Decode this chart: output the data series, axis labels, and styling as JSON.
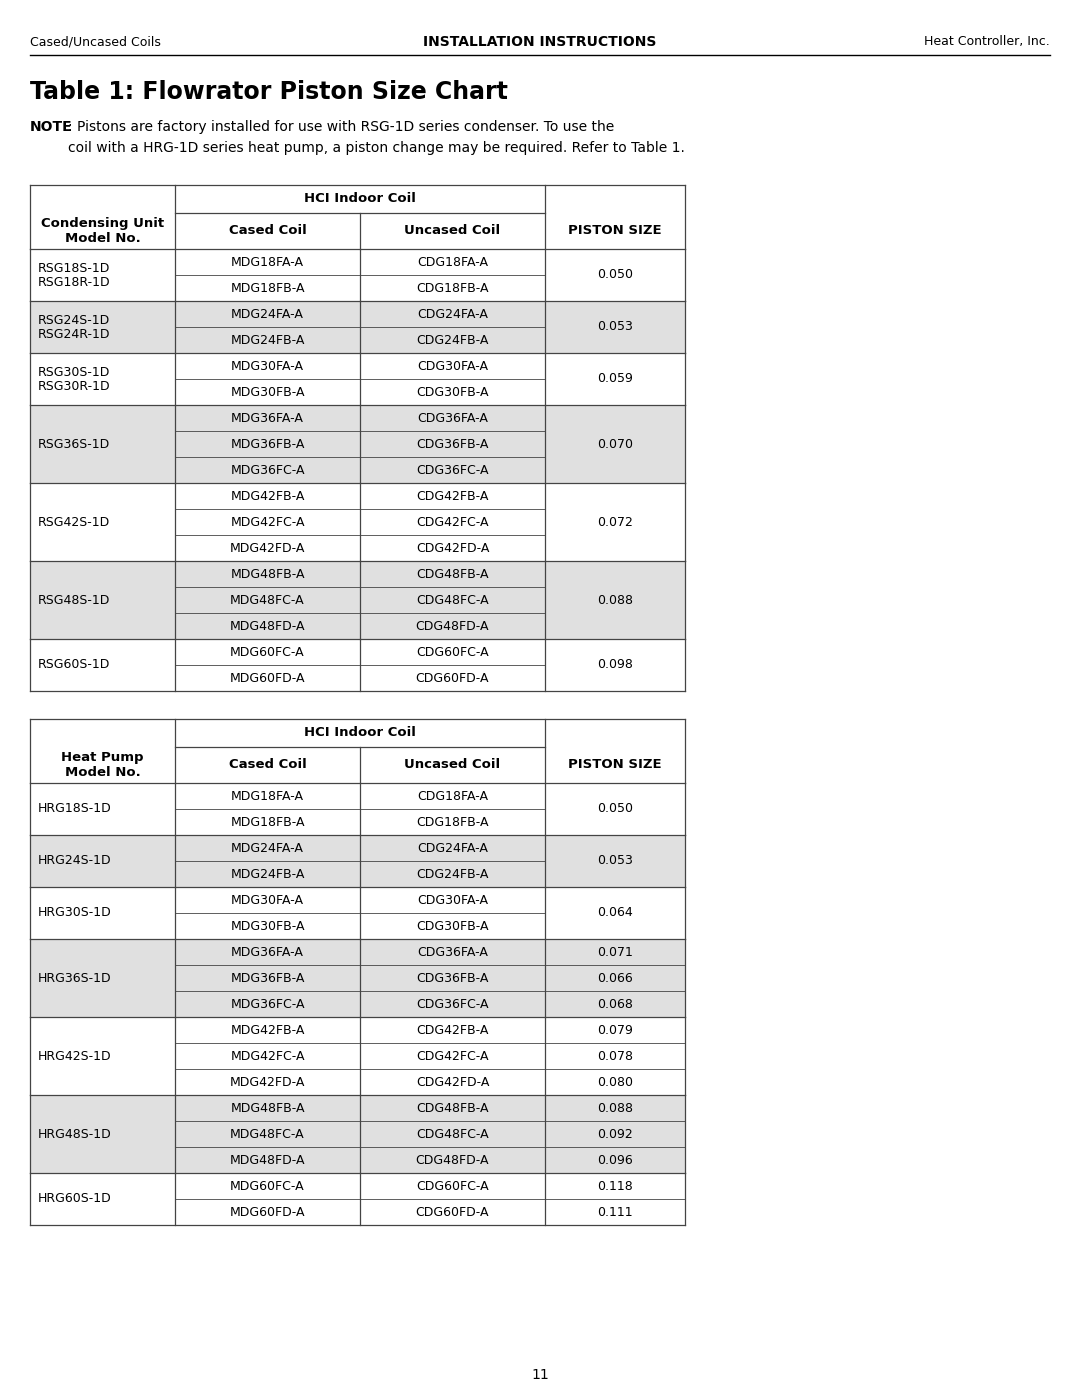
{
  "page_header_left": "Cased/Uncased Coils",
  "page_header_center": "INSTALLATION INSTRUCTIONS",
  "page_header_right": "Heat Controller, Inc.",
  "title": "Table 1: Flowrator Piston Size Chart",
  "note_bold": "NOTE",
  "note_text": ": Pistons are factory installed for use with RSG-1D series condenser. To use the\ncoil with a HRG-1D series heat pump, a piston change may be required. Refer to Table 1.",
  "page_number": "11",
  "table1": {
    "header_span": "HCI Indoor Coil",
    "col1_header": "Condensing Unit\nModel No.",
    "col2_header": "Cased Coil",
    "col3_header": "Uncased Coil",
    "col4_header": "PISTON SIZE",
    "rows": [
      {
        "model": "RSG18S-1D\nRSG18R-1D",
        "cased": [
          "MDG18FA-A",
          "MDG18FB-A"
        ],
        "uncased": [
          "CDG18FA-A",
          "CDG18FB-A"
        ],
        "piston": [
          "0.050"
        ],
        "nrows": 2,
        "shaded": false
      },
      {
        "model": "RSG24S-1D\nRSG24R-1D",
        "cased": [
          "MDG24FA-A",
          "MDG24FB-A"
        ],
        "uncased": [
          "CDG24FA-A",
          "CDG24FB-A"
        ],
        "piston": [
          "0.053"
        ],
        "nrows": 2,
        "shaded": true
      },
      {
        "model": "RSG30S-1D\nRSG30R-1D",
        "cased": [
          "MDG30FA-A",
          "MDG30FB-A"
        ],
        "uncased": [
          "CDG30FA-A",
          "CDG30FB-A"
        ],
        "piston": [
          "0.059"
        ],
        "nrows": 2,
        "shaded": false
      },
      {
        "model": "RSG36S-1D",
        "cased": [
          "MDG36FA-A",
          "MDG36FB-A",
          "MDG36FC-A"
        ],
        "uncased": [
          "CDG36FA-A",
          "CDG36FB-A",
          "CDG36FC-A"
        ],
        "piston": [
          "0.070"
        ],
        "nrows": 3,
        "shaded": true
      },
      {
        "model": "RSG42S-1D",
        "cased": [
          "MDG42FB-A",
          "MDG42FC-A",
          "MDG42FD-A"
        ],
        "uncased": [
          "CDG42FB-A",
          "CDG42FC-A",
          "CDG42FD-A"
        ],
        "piston": [
          "0.072"
        ],
        "nrows": 3,
        "shaded": false
      },
      {
        "model": "RSG48S-1D",
        "cased": [
          "MDG48FB-A",
          "MDG48FC-A",
          "MDG48FD-A"
        ],
        "uncased": [
          "CDG48FB-A",
          "CDG48FC-A",
          "CDG48FD-A"
        ],
        "piston": [
          "0.088"
        ],
        "nrows": 3,
        "shaded": true
      },
      {
        "model": "RSG60S-1D",
        "cased": [
          "MDG60FC-A",
          "MDG60FD-A"
        ],
        "uncased": [
          "CDG60FC-A",
          "CDG60FD-A"
        ],
        "piston": [
          "0.098"
        ],
        "nrows": 2,
        "shaded": false
      }
    ]
  },
  "table2": {
    "header_span": "HCI Indoor Coil",
    "col1_header": "Heat Pump\nModel No.",
    "col2_header": "Cased Coil",
    "col3_header": "Uncased Coil",
    "col4_header": "PISTON SIZE",
    "rows": [
      {
        "model": "HRG18S-1D",
        "cased": [
          "MDG18FA-A",
          "MDG18FB-A"
        ],
        "uncased": [
          "CDG18FA-A",
          "CDG18FB-A"
        ],
        "piston": [
          "0.050",
          "0.050"
        ],
        "nrows": 2,
        "shaded": false,
        "piston_per_row": false
      },
      {
        "model": "HRG24S-1D",
        "cased": [
          "MDG24FA-A",
          "MDG24FB-A"
        ],
        "uncased": [
          "CDG24FA-A",
          "CDG24FB-A"
        ],
        "piston": [
          "0.053",
          "0.053"
        ],
        "nrows": 2,
        "shaded": true,
        "piston_per_row": false
      },
      {
        "model": "HRG30S-1D",
        "cased": [
          "MDG30FA-A",
          "MDG30FB-A"
        ],
        "uncased": [
          "CDG30FA-A",
          "CDG30FB-A"
        ],
        "piston": [
          "0.064",
          "0.064"
        ],
        "nrows": 2,
        "shaded": false,
        "piston_per_row": false
      },
      {
        "model": "HRG36S-1D",
        "cased": [
          "MDG36FA-A",
          "MDG36FB-A",
          "MDG36FC-A"
        ],
        "uncased": [
          "CDG36FA-A",
          "CDG36FB-A",
          "CDG36FC-A"
        ],
        "piston": [
          "0.071",
          "0.066",
          "0.068"
        ],
        "nrows": 3,
        "shaded": true,
        "piston_per_row": true
      },
      {
        "model": "HRG42S-1D",
        "cased": [
          "MDG42FB-A",
          "MDG42FC-A",
          "MDG42FD-A"
        ],
        "uncased": [
          "CDG42FB-A",
          "CDG42FC-A",
          "CDG42FD-A"
        ],
        "piston": [
          "0.079",
          "0.078",
          "0.080"
        ],
        "nrows": 3,
        "shaded": false,
        "piston_per_row": true
      },
      {
        "model": "HRG48S-1D",
        "cased": [
          "MDG48FB-A",
          "MDG48FC-A",
          "MDG48FD-A"
        ],
        "uncased": [
          "CDG48FB-A",
          "CDG48FC-A",
          "CDG48FD-A"
        ],
        "piston": [
          "0.088",
          "0.092",
          "0.096"
        ],
        "nrows": 3,
        "shaded": true,
        "piston_per_row": true
      },
      {
        "model": "HRG60S-1D",
        "cased": [
          "MDG60FC-A",
          "MDG60FD-A"
        ],
        "uncased": [
          "CDG60FC-A",
          "CDG60FD-A"
        ],
        "piston": [
          "0.118",
          "0.111"
        ],
        "nrows": 2,
        "shaded": false,
        "piston_per_row": true
      }
    ]
  },
  "bg_color": "#ffffff",
  "shade_color": "#e0e0e0",
  "border_color": "#444444",
  "text_color": "#000000"
}
